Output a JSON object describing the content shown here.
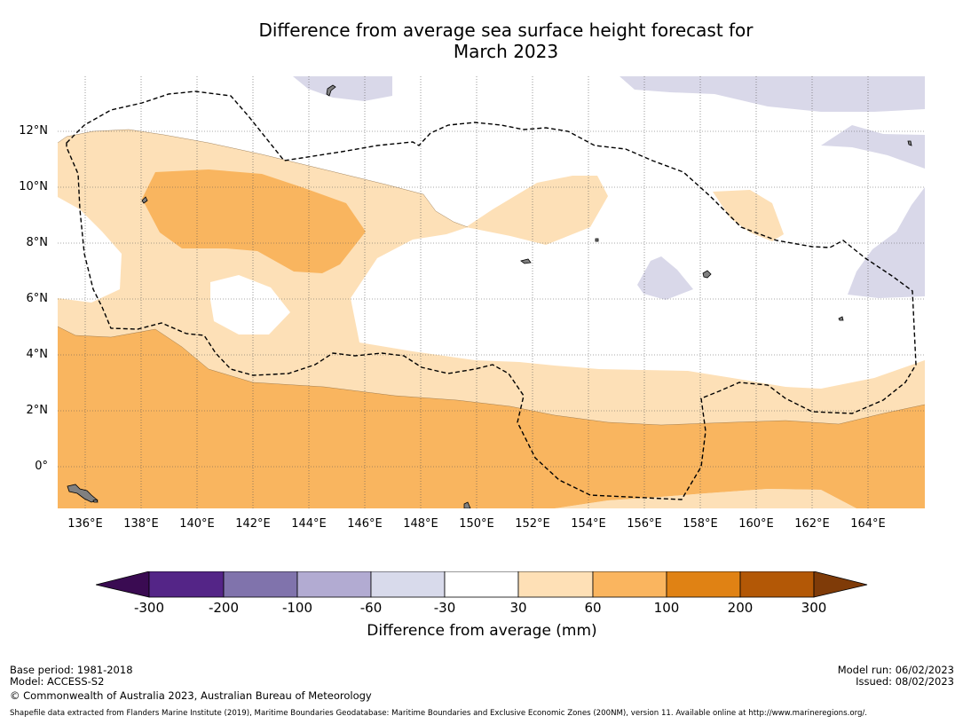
{
  "title_line1": "Difference from average sea surface height forecast for",
  "title_line2": "March 2023",
  "map": {
    "lon_range": [
      135,
      166
    ],
    "lat_range": [
      -1.5,
      14
    ],
    "x_ticks": [
      "136°E",
      "138°E",
      "140°E",
      "142°E",
      "144°E",
      "146°E",
      "148°E",
      "150°E",
      "152°E",
      "154°E",
      "156°E",
      "158°E",
      "160°E",
      "162°E",
      "164°E"
    ],
    "y_ticks": [
      "12°N",
      "10°N",
      "8°N",
      "6°N",
      "4°N",
      "2°N",
      "0°"
    ],
    "gridlines": true,
    "colors": {
      "ocean_neutral": "#ffffff",
      "pos_30_60": "#fde0b7",
      "pos_60_100": "#f9b55f",
      "neg_60_30": "#d9d8e9",
      "land": "#808080",
      "eez_line": "#000000"
    }
  },
  "colorbar": {
    "ticks": [
      "-300",
      "-200",
      "-100",
      "-60",
      "-30",
      "30",
      "60",
      "100",
      "200",
      "300"
    ],
    "colors": [
      "#3a0b52",
      "#542587",
      "#8073ac",
      "#b2abd2",
      "#d8daeb",
      "#ffffff",
      "#fee0b6",
      "#fab55f",
      "#e08214",
      "#b35806",
      "#7f3b08"
    ],
    "label": "Difference from average (mm)"
  },
  "footer": {
    "base_period": "Base period: 1981-2018",
    "model": "Model: ACCESS-S2",
    "copyright": "© Commonwealth of Australia 2023, Australian Bureau of Meteorology",
    "model_run": "Model run: 06/02/2023",
    "issued": "Issued: 08/02/2023",
    "shapefile": "Shapefile data extracted from Flanders Marine Institute (2019), Maritime Boundaries Geodatabase: Maritime Boundaries and Exclusive Economic Zones (200NM), version 11. Available online at http://www.marineregions.org/."
  }
}
